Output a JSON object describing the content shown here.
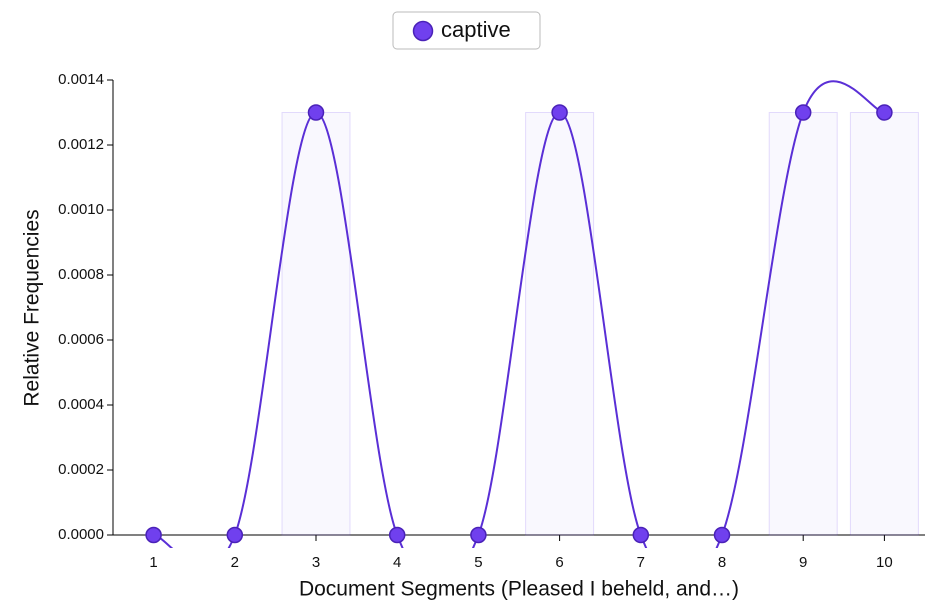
{
  "chart_data": {
    "type": "line",
    "series": [
      {
        "name": "captive",
        "color": "#7040ee",
        "values": [
          0,
          0,
          0.0013,
          0,
          0,
          0.0013,
          0,
          0,
          0.0013,
          0.0013
        ]
      }
    ],
    "categories": [
      "1",
      "2",
      "3",
      "4",
      "5",
      "6",
      "7",
      "8",
      "9",
      "10"
    ],
    "xlabel": "Document Segments (Pleased I beheld, and…)",
    "ylabel": "Relative Frequencies",
    "ylim": [
      0,
      0.0014
    ],
    "yticks": [
      {
        "value": 0,
        "label": "0.0000"
      },
      0.0002,
      0.0004,
      0.0006,
      0.0008,
      {
        "value": 0.001,
        "label": "0.0010"
      },
      0.0012,
      0.0014
    ],
    "legend": "top"
  }
}
